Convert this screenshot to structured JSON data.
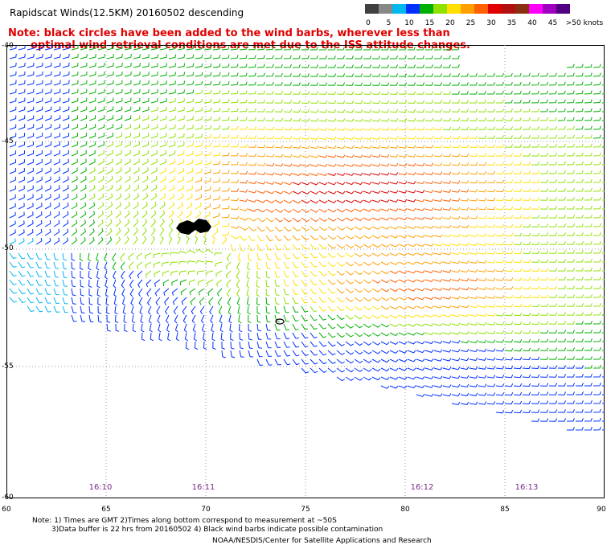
{
  "title": "Rapidscat Winds(12.5KM) 20160502 descending",
  "note_line1": "Note: black circles have been added to the wind barbs, wherever less than",
  "note_line2": "optimal wind retrieval conditions are met due to the ISS attitude changes.",
  "legend": {
    "colors": [
      "#404040",
      "#888888",
      "#00b8f0",
      "#0030ff",
      "#00b000",
      "#90e000",
      "#ffe000",
      "#ffa000",
      "#ff6000",
      "#e00000",
      "#b01010",
      "#8a3010",
      "#ff00ff",
      "#a000c0",
      "#500080"
    ],
    "labels": [
      "0",
      "5",
      "10",
      "15",
      "20",
      "25",
      "30",
      "35",
      "40",
      "45",
      ">50 knots"
    ]
  },
  "map": {
    "lat_labels": [
      "-40",
      "-45",
      "-50",
      "-55",
      "-60"
    ],
    "lon_labels": [
      "60",
      "65",
      "70",
      "75",
      "80",
      "85",
      "90"
    ],
    "time_labels": [
      "16:10",
      "16:11",
      "16:12",
      "16:13"
    ]
  },
  "footer": {
    "line1": "Note: 1) Times are GMT 2)Times along bottom correspond to measurement at ~50S",
    "line2": "3)Data buffer is 22 hrs from 20160502 4) Black wind barbs indicate possible contamination",
    "line3": "NOAA/NESDIS/Center for Satellite Applications and Research"
  }
}
